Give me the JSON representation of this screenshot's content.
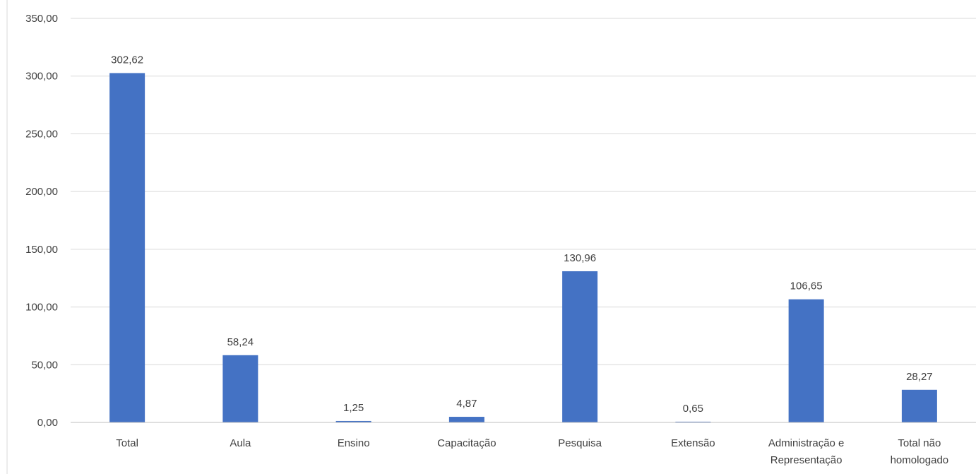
{
  "chart_data": {
    "type": "bar",
    "categories": [
      [
        "Total"
      ],
      [
        "Aula"
      ],
      [
        "Ensino"
      ],
      [
        "Capacitação"
      ],
      [
        "Pesquisa"
      ],
      [
        "Extensão"
      ],
      [
        "Administração e",
        "Representação"
      ],
      [
        "Total não",
        "homologado"
      ]
    ],
    "values": [
      302.62,
      58.24,
      1.25,
      4.87,
      130.96,
      0.65,
      106.65,
      28.27
    ],
    "data_labels": [
      "302,62",
      "58,24",
      "1,25",
      "4,87",
      "130,96",
      "0,65",
      "106,65",
      "28,27"
    ],
    "y_ticks": [
      0,
      50,
      100,
      150,
      200,
      250,
      300,
      350
    ],
    "y_tick_labels": [
      "0,00",
      "50,00",
      "100,00",
      "150,00",
      "200,00",
      "250,00",
      "300,00",
      "350,00"
    ],
    "ylim": [
      0,
      350
    ],
    "bar_color": "#4472c4",
    "grid": true,
    "legend": "none"
  }
}
